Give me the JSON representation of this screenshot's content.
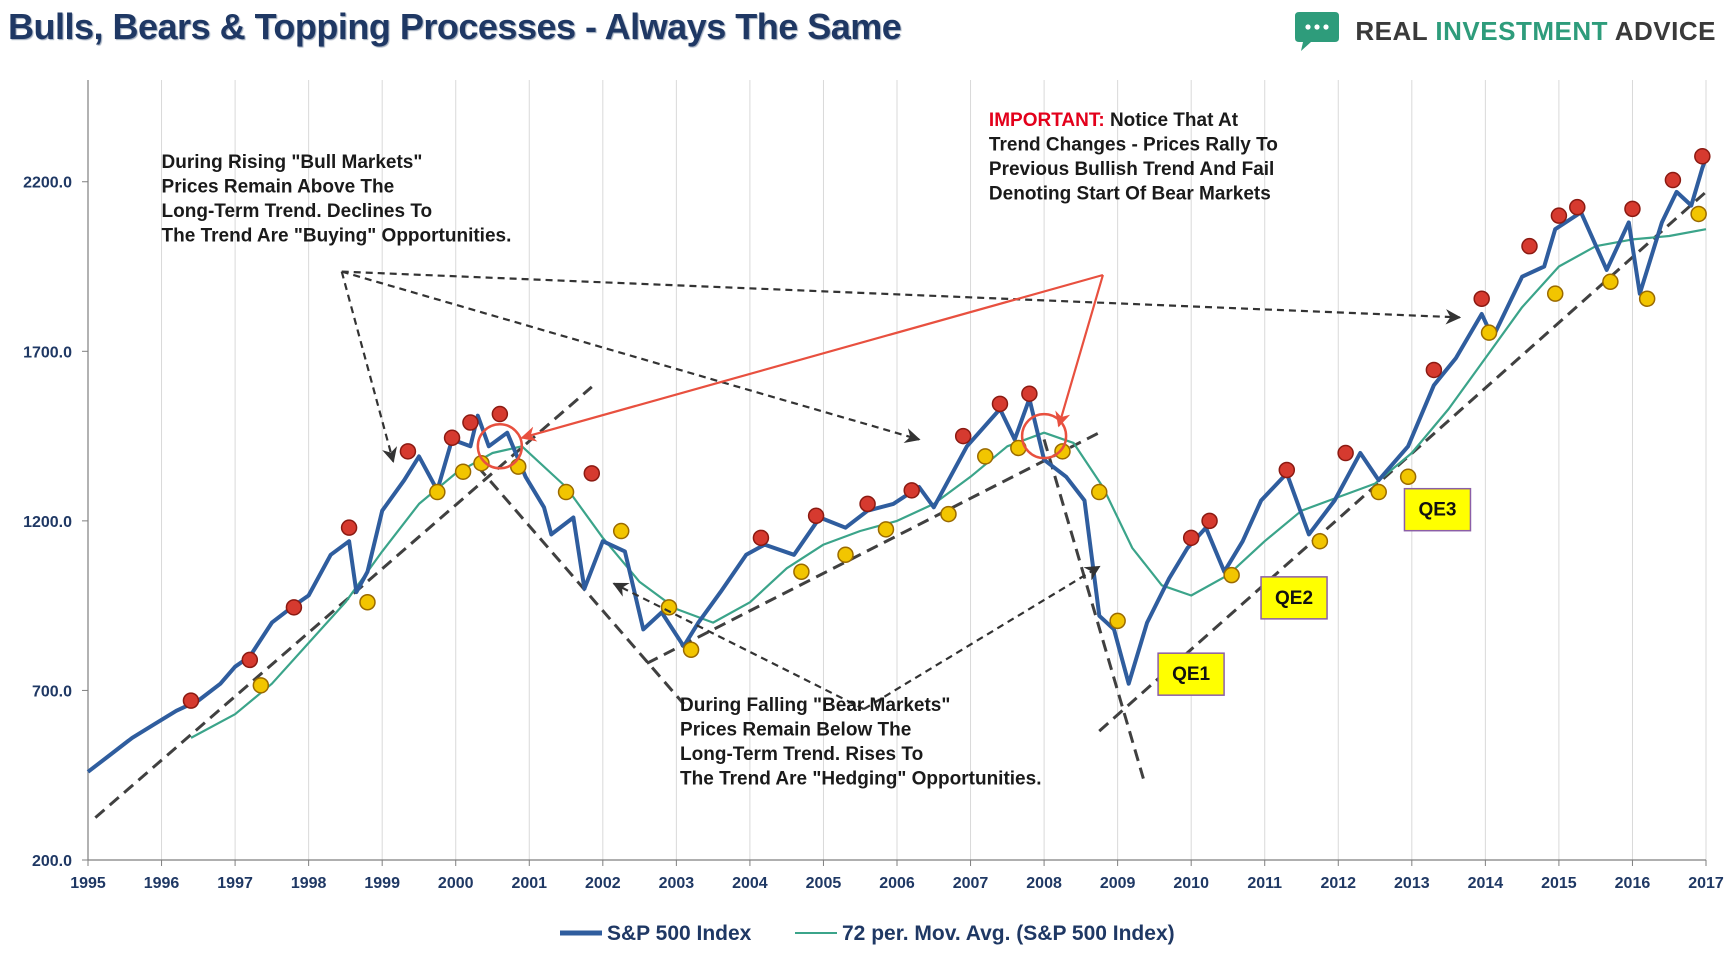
{
  "header": {
    "title": "Bulls, Bears & Topping Processes - Always The Same",
    "logo": {
      "word1": "REAL ",
      "word2": "INVESTMENT",
      "word3": " ADVICE",
      "icon": "chat-bubble-icon",
      "color": "#2e9c7b"
    }
  },
  "chart_data": {
    "type": "line",
    "title": "Bulls, Bears & Topping Processes - Always The Same",
    "xlabel": "",
    "ylabel": "",
    "xlim": [
      1995,
      2017
    ],
    "ylim": [
      200,
      2500
    ],
    "x_ticks": [
      "1995",
      "1996",
      "1997",
      "1998",
      "1999",
      "2000",
      "2001",
      "2002",
      "2003",
      "2004",
      "2005",
      "2006",
      "2007",
      "2008",
      "2009",
      "2010",
      "2011",
      "2012",
      "2013",
      "2014",
      "2015",
      "2016",
      "2017"
    ],
    "y_ticks": [
      {
        "value": 200,
        "label": "200.0"
      },
      {
        "value": 700,
        "label": "700.0"
      },
      {
        "value": 1200,
        "label": "1200.0"
      },
      {
        "value": 1700,
        "label": "1700.0"
      },
      {
        "value": 2200,
        "label": "2200.0"
      }
    ],
    "grid": "vertical",
    "legend_position": "bottom-center",
    "series": [
      {
        "name": "S&P 500 Index",
        "color": "#2f5d9e",
        "points": [
          [
            1995.0,
            460
          ],
          [
            1995.3,
            510
          ],
          [
            1995.6,
            560
          ],
          [
            1995.9,
            600
          ],
          [
            1996.2,
            640
          ],
          [
            1996.5,
            670
          ],
          [
            1996.8,
            720
          ],
          [
            1997.0,
            770
          ],
          [
            1997.2,
            800
          ],
          [
            1997.5,
            900
          ],
          [
            1997.8,
            950
          ],
          [
            1998.0,
            980
          ],
          [
            1998.3,
            1100
          ],
          [
            1998.55,
            1140
          ],
          [
            1998.65,
            990
          ],
          [
            1998.8,
            1050
          ],
          [
            1999.0,
            1230
          ],
          [
            1999.3,
            1320
          ],
          [
            1999.5,
            1390
          ],
          [
            1999.75,
            1290
          ],
          [
            1999.95,
            1440
          ],
          [
            2000.2,
            1420
          ],
          [
            2000.3,
            1510
          ],
          [
            2000.45,
            1420
          ],
          [
            2000.7,
            1460
          ],
          [
            2000.95,
            1330
          ],
          [
            2001.2,
            1240
          ],
          [
            2001.3,
            1160
          ],
          [
            2001.6,
            1210
          ],
          [
            2001.75,
            1000
          ],
          [
            2002.0,
            1140
          ],
          [
            2002.3,
            1110
          ],
          [
            2002.55,
            880
          ],
          [
            2002.8,
            930
          ],
          [
            2003.1,
            830
          ],
          [
            2003.3,
            900
          ],
          [
            2003.6,
            990
          ],
          [
            2003.95,
            1100
          ],
          [
            2004.2,
            1130
          ],
          [
            2004.6,
            1100
          ],
          [
            2004.95,
            1210
          ],
          [
            2005.3,
            1180
          ],
          [
            2005.6,
            1230
          ],
          [
            2005.95,
            1250
          ],
          [
            2006.3,
            1300
          ],
          [
            2006.5,
            1240
          ],
          [
            2006.95,
            1420
          ],
          [
            2007.4,
            1530
          ],
          [
            2007.6,
            1440
          ],
          [
            2007.8,
            1560
          ],
          [
            2008.0,
            1380
          ],
          [
            2008.3,
            1330
          ],
          [
            2008.55,
            1260
          ],
          [
            2008.75,
            920
          ],
          [
            2008.95,
            880
          ],
          [
            2009.15,
            720
          ],
          [
            2009.4,
            900
          ],
          [
            2009.7,
            1030
          ],
          [
            2009.95,
            1120
          ],
          [
            2010.2,
            1180
          ],
          [
            2010.45,
            1050
          ],
          [
            2010.7,
            1140
          ],
          [
            2010.95,
            1260
          ],
          [
            2011.3,
            1340
          ],
          [
            2011.6,
            1160
          ],
          [
            2011.95,
            1260
          ],
          [
            2012.3,
            1400
          ],
          [
            2012.55,
            1320
          ],
          [
            2012.95,
            1420
          ],
          [
            2013.3,
            1600
          ],
          [
            2013.6,
            1680
          ],
          [
            2013.95,
            1810
          ],
          [
            2014.1,
            1740
          ],
          [
            2014.5,
            1920
          ],
          [
            2014.8,
            1950
          ],
          [
            2014.95,
            2060
          ],
          [
            2015.3,
            2110
          ],
          [
            2015.65,
            1940
          ],
          [
            2015.95,
            2080
          ],
          [
            2016.1,
            1870
          ],
          [
            2016.4,
            2080
          ],
          [
            2016.6,
            2170
          ],
          [
            2016.8,
            2130
          ],
          [
            2016.95,
            2240
          ],
          [
            2017.0,
            2270
          ]
        ]
      },
      {
        "name": "72 per. Mov. Avg. (S&P 500 Index)",
        "color": "#3ba48a",
        "points": [
          [
            1996.4,
            560
          ],
          [
            1997.0,
            630
          ],
          [
            1997.5,
            720
          ],
          [
            1998.0,
            840
          ],
          [
            1998.5,
            960
          ],
          [
            1999.0,
            1110
          ],
          [
            1999.5,
            1250
          ],
          [
            2000.0,
            1340
          ],
          [
            2000.5,
            1400
          ],
          [
            2000.9,
            1420
          ],
          [
            2001.5,
            1300
          ],
          [
            2002.0,
            1150
          ],
          [
            2002.5,
            1020
          ],
          [
            2003.0,
            940
          ],
          [
            2003.5,
            900
          ],
          [
            2004.0,
            960
          ],
          [
            2004.5,
            1060
          ],
          [
            2005.0,
            1130
          ],
          [
            2005.5,
            1170
          ],
          [
            2006.0,
            1200
          ],
          [
            2006.5,
            1250
          ],
          [
            2007.0,
            1330
          ],
          [
            2007.5,
            1420
          ],
          [
            2008.0,
            1460
          ],
          [
            2008.4,
            1430
          ],
          [
            2008.8,
            1300
          ],
          [
            2009.2,
            1120
          ],
          [
            2009.6,
            1010
          ],
          [
            2010.0,
            980
          ],
          [
            2010.5,
            1040
          ],
          [
            2011.0,
            1140
          ],
          [
            2011.5,
            1230
          ],
          [
            2012.0,
            1270
          ],
          [
            2012.5,
            1310
          ],
          [
            2013.0,
            1400
          ],
          [
            2013.5,
            1530
          ],
          [
            2014.0,
            1680
          ],
          [
            2014.5,
            1830
          ],
          [
            2015.0,
            1950
          ],
          [
            2015.5,
            2010
          ],
          [
            2016.0,
            2030
          ],
          [
            2016.5,
            2040
          ],
          [
            2017.0,
            2060
          ]
        ]
      }
    ],
    "peak_markers": [
      [
        1996.4,
        670
      ],
      [
        1997.2,
        790
      ],
      [
        1997.8,
        945
      ],
      [
        1998.55,
        1180
      ],
      [
        1999.35,
        1405
      ],
      [
        1999.95,
        1445
      ],
      [
        2000.2,
        1490
      ],
      [
        2000.6,
        1515
      ],
      [
        2001.85,
        1340
      ],
      [
        2004.15,
        1150
      ],
      [
        2004.9,
        1215
      ],
      [
        2005.6,
        1250
      ],
      [
        2006.2,
        1290
      ],
      [
        2006.9,
        1450
      ],
      [
        2007.4,
        1545
      ],
      [
        2007.8,
        1575
      ],
      [
        2010.0,
        1150
      ],
      [
        2010.25,
        1200
      ],
      [
        2011.3,
        1350
      ],
      [
        2012.1,
        1400
      ],
      [
        2013.3,
        1645
      ],
      [
        2013.95,
        1855
      ],
      [
        2014.6,
        2010
      ],
      [
        2015.0,
        2100
      ],
      [
        2015.25,
        2125
      ],
      [
        2016.0,
        2120
      ],
      [
        2016.55,
        2205
      ],
      [
        2016.95,
        2275
      ]
    ],
    "trough_markers": [
      [
        1997.35,
        715
      ],
      [
        1998.8,
        960
      ],
      [
        1999.75,
        1285
      ],
      [
        2000.1,
        1345
      ],
      [
        2000.35,
        1370
      ],
      [
        2000.85,
        1360
      ],
      [
        2001.5,
        1285
      ],
      [
        2002.25,
        1170
      ],
      [
        2002.9,
        945
      ],
      [
        2003.2,
        820
      ],
      [
        2004.7,
        1050
      ],
      [
        2005.3,
        1100
      ],
      [
        2005.85,
        1175
      ],
      [
        2006.7,
        1220
      ],
      [
        2007.2,
        1390
      ],
      [
        2007.65,
        1415
      ],
      [
        2008.25,
        1405
      ],
      [
        2008.75,
        1285
      ],
      [
        2009.0,
        905
      ],
      [
        2010.55,
        1040
      ],
      [
        2011.75,
        1140
      ],
      [
        2012.55,
        1285
      ],
      [
        2012.95,
        1330
      ],
      [
        2014.05,
        1755
      ],
      [
        2014.95,
        1870
      ],
      [
        2015.7,
        1905
      ],
      [
        2016.2,
        1855
      ],
      [
        2016.9,
        2105
      ]
    ],
    "trend_lines": [
      {
        "name": "bull-trend-1995-2000",
        "from": [
          1995.1,
          325
        ],
        "to": [
          2001.85,
          1595
        ]
      },
      {
        "name": "bear-trend-2000-2003",
        "from": [
          2000.3,
          1360
        ],
        "to": [
          2003.1,
          660
        ]
      },
      {
        "name": "bull-trend-2003-2007",
        "from": [
          2002.6,
          780
        ],
        "to": [
          2008.75,
          1460
        ]
      },
      {
        "name": "bear-trend-2007-2009",
        "from": [
          2008.0,
          1440
        ],
        "to": [
          2009.35,
          440
        ]
      },
      {
        "name": "bull-trend-2009-2017",
        "from": [
          2008.75,
          580
        ],
        "to": [
          2017.0,
          2170
        ]
      }
    ],
    "circles": [
      {
        "name": "top-circle-2000",
        "center": [
          2000.6,
          1420
        ]
      },
      {
        "name": "top-circle-2007",
        "center": [
          2008.0,
          1450
        ]
      }
    ],
    "annotations": [
      {
        "name": "note-bull-markets",
        "lines": [
          "During Rising \"Bull Markets\"",
          "Prices Remain Above The",
          "Long-Term Trend. Declines To",
          "The Trend Are \"Buying\" Opportunities."
        ],
        "anchor": [
          1996.0,
          2240
        ]
      },
      {
        "name": "note-bear-markets",
        "lines": [
          "During Falling \"Bear Markets\"",
          "Prices Remain Below The",
          "Long-Term Trend. Rises To",
          "The Trend Are \"Hedging\" Opportunities."
        ],
        "anchor": [
          2003.05,
          640
        ]
      },
      {
        "name": "note-important",
        "prefix": "IMPORTANT:",
        "lines": [
          " Notice That At",
          "Trend Changes - Prices Rally To",
          "Previous Bullish Trend And Fail",
          "Denoting Start Of Bear Markets"
        ],
        "anchor": [
          2007.25,
          2365
        ]
      }
    ],
    "qe_labels": [
      {
        "label": "QE1",
        "at": [
          2009.55,
          745
        ]
      },
      {
        "label": "QE2",
        "at": [
          2010.95,
          970
        ]
      },
      {
        "label": "QE3",
        "at": [
          2012.9,
          1230
        ]
      }
    ]
  },
  "legend": {
    "sp500": "S&P 500 Index",
    "mavg": "72 per. Mov. Avg. (S&P 500 Index)"
  }
}
